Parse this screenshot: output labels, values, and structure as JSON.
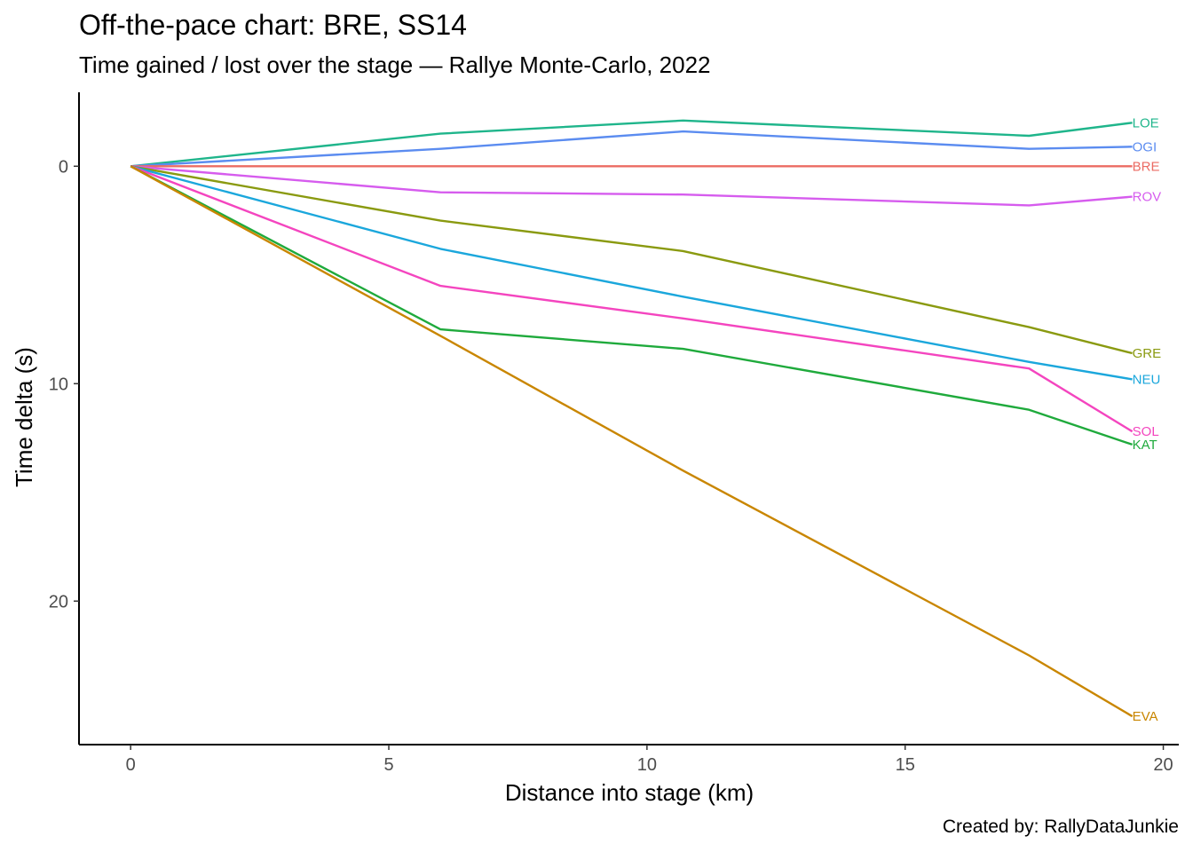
{
  "title": "Off-the-pace chart: BRE, SS14",
  "subtitle": "Time gained / lost over the stage — Rallye Monte-Carlo, 2022",
  "caption": "Created by: RallyDataJunkie",
  "chart_data": {
    "type": "line",
    "xlabel": "Distance into stage (km)",
    "ylabel": "Time delta (s)",
    "xlim": [
      -1,
      20.3
    ],
    "ylim": [
      -3.4,
      26.6
    ],
    "y_reversed": true,
    "grid": false,
    "legend": "none (direct end labels)",
    "x_ticks": [
      0,
      5,
      10,
      15,
      20
    ],
    "y_ticks": [
      0,
      10,
      20
    ],
    "x": [
      0,
      6.0,
      10.7,
      17.4,
      19.4
    ],
    "series": [
      {
        "name": "LOE",
        "color": "#1FB58B",
        "values": [
          0,
          -1.5,
          -2.1,
          -1.4,
          -2.0
        ]
      },
      {
        "name": "OGI",
        "color": "#5B8CF0",
        "values": [
          0,
          -0.8,
          -1.6,
          -0.8,
          -0.9
        ]
      },
      {
        "name": "BRE",
        "color": "#EB6B63",
        "values": [
          0,
          0,
          0,
          0,
          0
        ]
      },
      {
        "name": "ROV",
        "color": "#D65CEE",
        "values": [
          0,
          1.2,
          1.3,
          1.8,
          1.4
        ]
      },
      {
        "name": "GRE",
        "color": "#8A9A10",
        "values": [
          0,
          2.5,
          3.9,
          7.4,
          8.6
        ]
      },
      {
        "name": "NEU",
        "color": "#1BA7DC",
        "values": [
          0,
          3.8,
          6.0,
          9.0,
          9.8
        ]
      },
      {
        "name": "SOL",
        "color": "#F445BF",
        "values": [
          0,
          5.5,
          7.0,
          9.3,
          12.2
        ]
      },
      {
        "name": "KAT",
        "color": "#1FAA3C",
        "values": [
          0,
          7.5,
          8.4,
          11.2,
          12.8
        ]
      },
      {
        "name": "EVA",
        "color": "#C98600",
        "values": [
          0,
          7.8,
          14.0,
          22.5,
          25.3
        ]
      }
    ]
  }
}
